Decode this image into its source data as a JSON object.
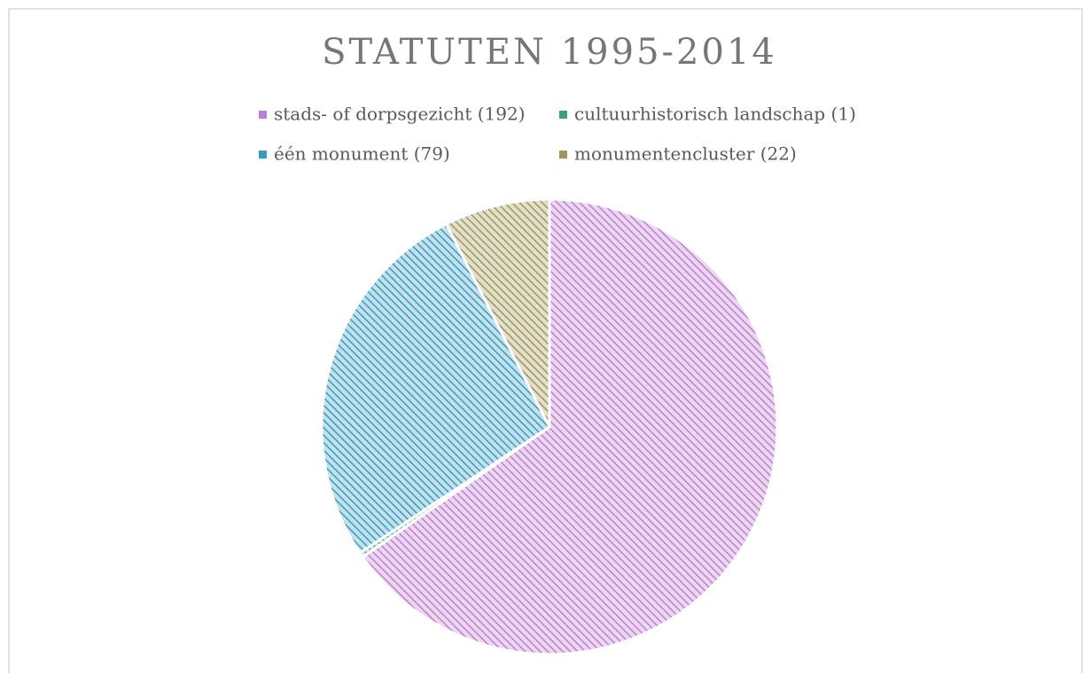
{
  "chart_data": {
    "type": "pie",
    "title": "STATUTEN 1995-2014",
    "categories": [
      "stads- of dorpsgezicht (192)",
      "cultuurhistorisch landschap (1)",
      "één monument (79)",
      "monumentencluster (22)"
    ],
    "values": [
      192,
      1,
      79,
      22
    ],
    "colors": [
      "#bf7fd0",
      "#3f9f82",
      "#3a9bbf",
      "#a0965a"
    ]
  }
}
